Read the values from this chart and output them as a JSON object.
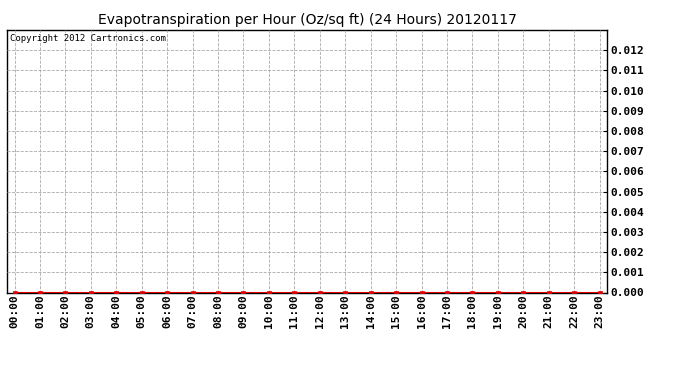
{
  "title": "Evapotranspiration per Hour (Oz/sq ft) (24 Hours) 20120117",
  "copyright_text": "Copyright 2012 Cartronics.com",
  "x_labels": [
    "00:00",
    "01:00",
    "02:00",
    "03:00",
    "04:00",
    "05:00",
    "06:00",
    "07:00",
    "08:00",
    "09:00",
    "10:00",
    "11:00",
    "12:00",
    "13:00",
    "14:00",
    "15:00",
    "16:00",
    "17:00",
    "18:00",
    "19:00",
    "20:00",
    "21:00",
    "22:00",
    "23:00"
  ],
  "y_values": [
    0.0,
    0.0,
    0.0,
    0.0,
    0.0,
    0.0,
    0.0,
    0.0,
    0.0,
    0.0,
    0.0,
    0.0,
    0.0,
    0.0,
    0.0,
    0.0,
    0.0,
    0.0,
    0.0,
    0.0,
    0.0,
    0.0,
    0.0,
    0.0
  ],
  "ylim": [
    0,
    0.013
  ],
  "yticks": [
    0.0,
    0.001,
    0.002,
    0.003,
    0.004,
    0.005,
    0.006,
    0.007,
    0.008,
    0.009,
    0.01,
    0.011,
    0.012
  ],
  "line_color": "#dd0000",
  "marker_color": "#dd0000",
  "marker": "s",
  "marker_size": 3,
  "grid_color": "#aaaaaa",
  "background_color": "#ffffff",
  "plot_bg_color": "#ffffff",
  "title_fontsize": 10,
  "copyright_fontsize": 6.5,
  "tick_fontsize": 8,
  "ytick_fontweight": "bold"
}
